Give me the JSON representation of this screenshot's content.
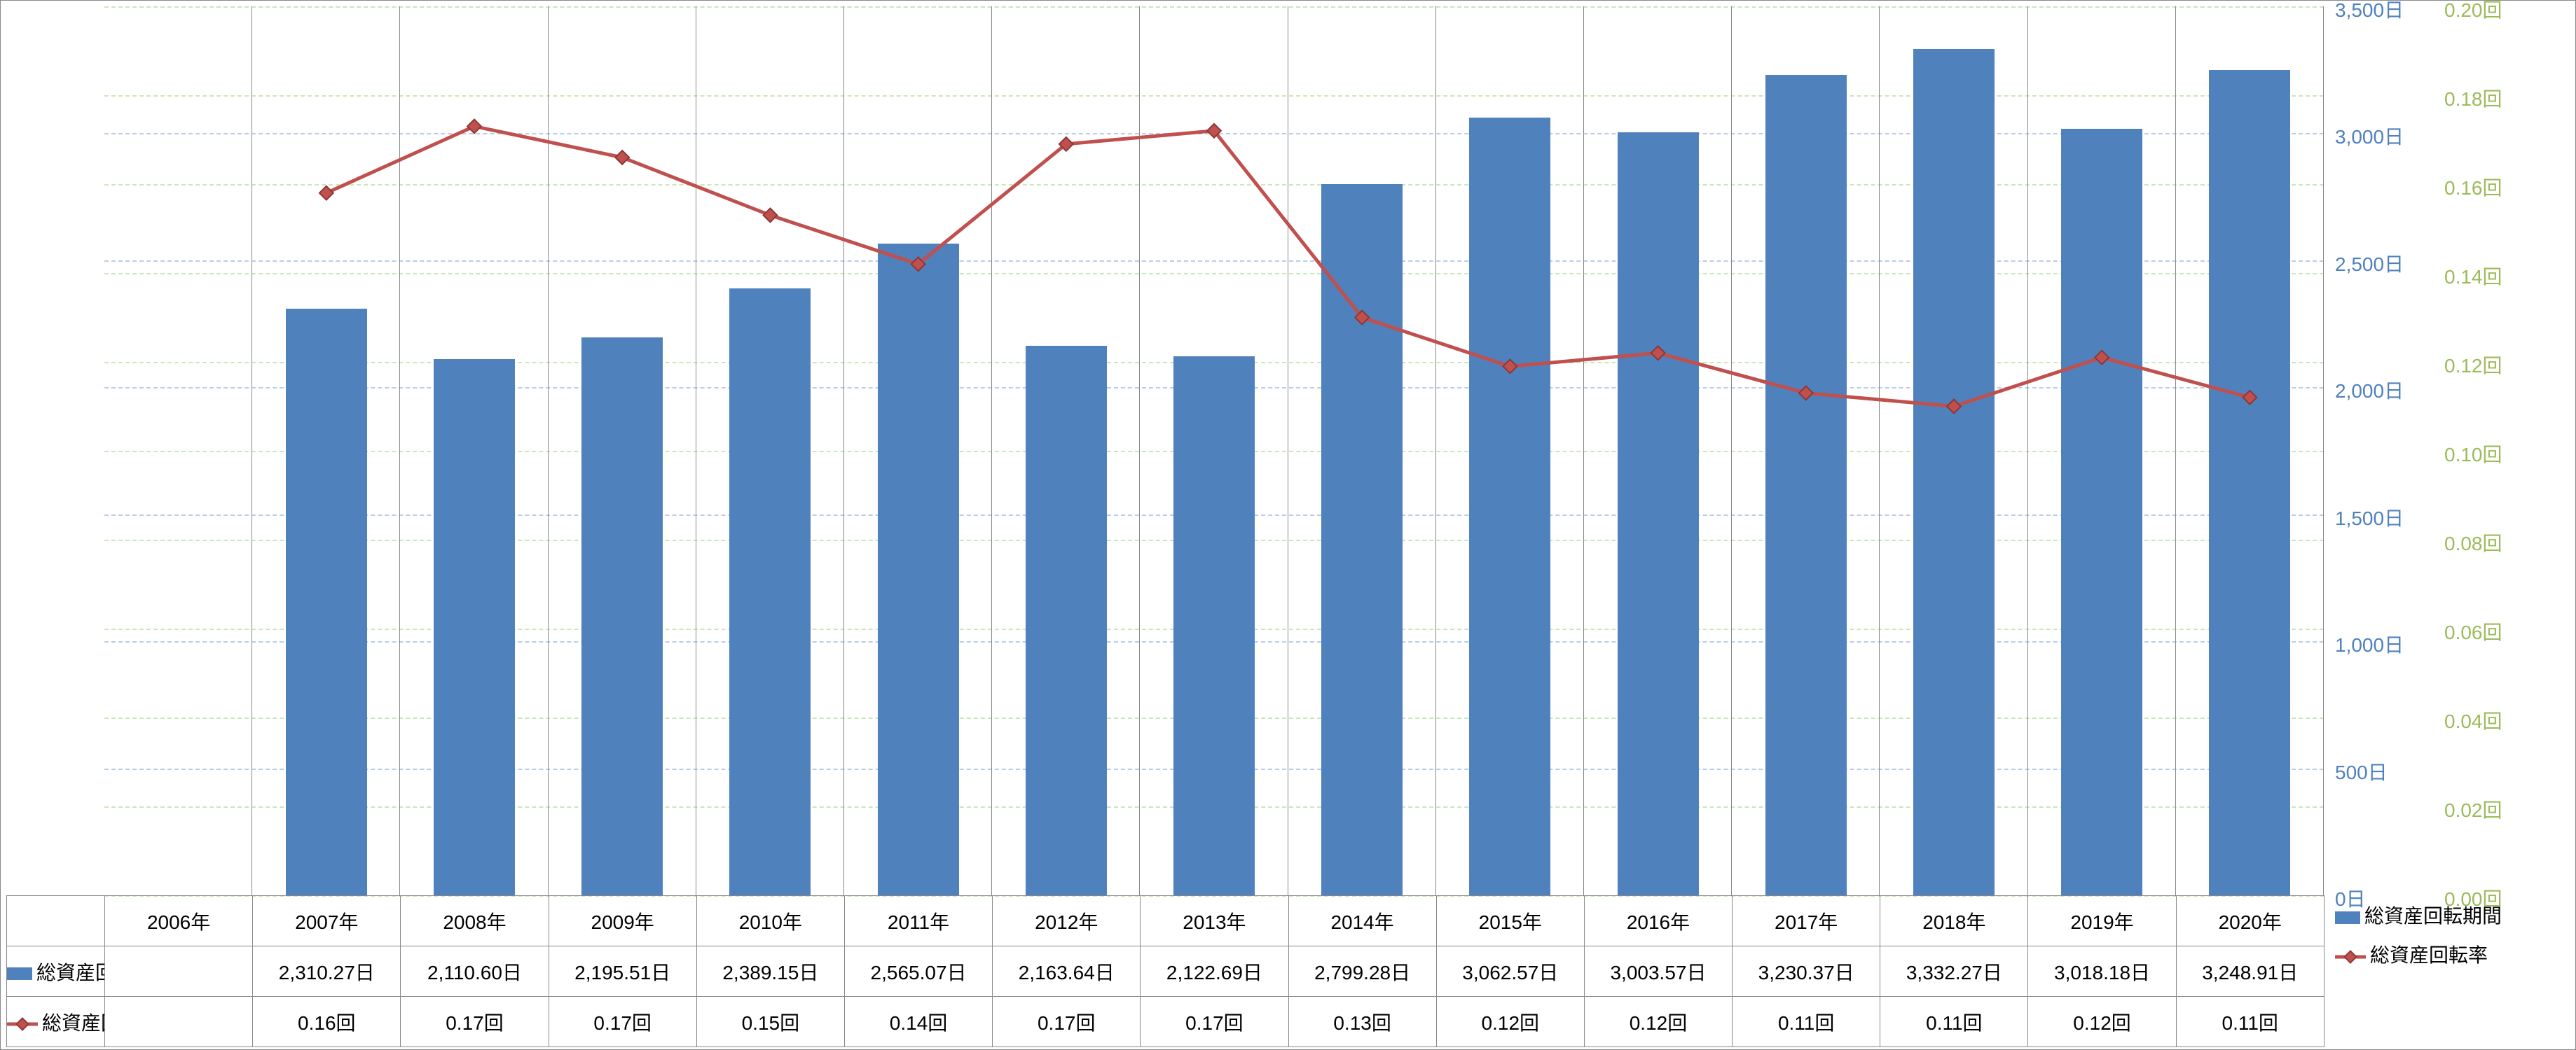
{
  "chart": {
    "type": "bar-line-combo",
    "background_color": "#ffffff",
    "border_color": "#888888",
    "years": [
      "2006年",
      "2007年",
      "2008年",
      "2009年",
      "2010年",
      "2011年",
      "2012年",
      "2013年",
      "2014年",
      "2015年",
      "2016年",
      "2017年",
      "2018年",
      "2019年",
      "2020年"
    ],
    "series_bar": {
      "name": "総資産回転期間",
      "color": "#4f81bd",
      "values_display": [
        "",
        "2,310.27日",
        "2,110.60日",
        "2,195.51日",
        "2,389.15日",
        "2,565.07日",
        "2,163.64日",
        "2,122.69日",
        "2,799.28日",
        "3,062.57日",
        "3,003.57日",
        "3,230.37日",
        "3,332.27日",
        "3,018.18日",
        "3,248.91日"
      ],
      "values_numeric": [
        null,
        2310.27,
        2110.6,
        2195.51,
        2389.15,
        2565.07,
        2163.64,
        2122.69,
        2799.28,
        3062.57,
        3003.57,
        3230.37,
        3332.27,
        3018.18,
        3248.91
      ],
      "bar_width_ratio": 0.55
    },
    "series_line": {
      "name": "総資産回転率",
      "color": "#c0504d",
      "values_display": [
        "",
        "0.16回",
        "0.17回",
        "0.17回",
        "0.15回",
        "0.14回",
        "0.17回",
        "0.17回",
        "0.13回",
        "0.12回",
        "0.12回",
        "0.11回",
        "0.11回",
        "0.12回",
        "0.11回"
      ],
      "values_numeric": [
        null,
        0.158,
        0.173,
        0.166,
        0.153,
        0.142,
        0.169,
        0.172,
        0.13,
        0.119,
        0.122,
        0.113,
        0.11,
        0.121,
        0.112
      ],
      "line_width": 5,
      "marker_size": 14,
      "marker_style": "diamond"
    },
    "y_axis_left": {
      "label_suffix": "日",
      "min": 0,
      "max": 3500,
      "step": 500,
      "tick_color": "#4f81bd",
      "grid_color": "#b7cde8",
      "tick_fontsize": 28
    },
    "y_axis_right": {
      "label_suffix": "回",
      "min": 0.0,
      "max": 0.2,
      "step": 0.02,
      "tick_color": "#9bbb59",
      "grid_color": "#c9e8b7",
      "tick_fontsize": 28
    },
    "table": {
      "row_headers": [
        "",
        "総資産回転期間",
        "総資産回転率"
      ],
      "fontsize": 28
    },
    "legend_labels": {
      "bar": "総資産回転期間",
      "line": "総資産回転率"
    }
  }
}
